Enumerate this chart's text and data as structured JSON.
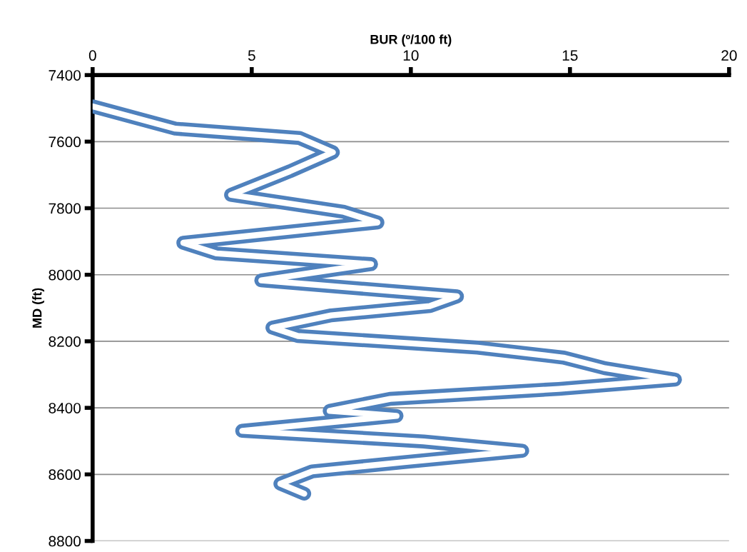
{
  "chart_data": {
    "type": "line",
    "xlabel": "BUR (º/100 ft)",
    "ylabel": "MD (ft)",
    "xlim": [
      0,
      20
    ],
    "xticks": [
      0,
      5,
      10,
      15,
      20
    ],
    "ylim": [
      8800,
      7400
    ],
    "yticks": [
      7400,
      7600,
      7800,
      8000,
      8200,
      8400,
      8600,
      8800
    ],
    "grid": "y",
    "marker": "none",
    "line_style": "solid",
    "series": [
      {
        "color": "#4f81bd",
        "x": [
          0,
          2.6,
          6.5,
          7.55,
          6.2,
          4.35,
          7.9,
          8.95,
          2.85,
          3.9,
          8.75,
          5.3,
          11.45,
          10.6,
          7.5,
          5.65,
          6.45,
          12.1,
          14.8,
          16.1,
          18.3,
          14.65,
          9.35,
          7.45,
          9.55,
          4.7,
          10.4,
          13.5,
          9.8,
          6.9,
          5.9,
          6.65
        ],
        "values": [
          7494,
          7561,
          7589,
          7632,
          7689,
          7760,
          7811,
          7843,
          7904,
          7936,
          7968,
          8017,
          8065,
          8094,
          8122,
          8159,
          8184,
          8219,
          8249,
          8281,
          8315,
          8343,
          8373,
          8409,
          8424,
          8469,
          8501,
          8529,
          8563,
          8591,
          8628,
          8658
        ]
      }
    ]
  }
}
